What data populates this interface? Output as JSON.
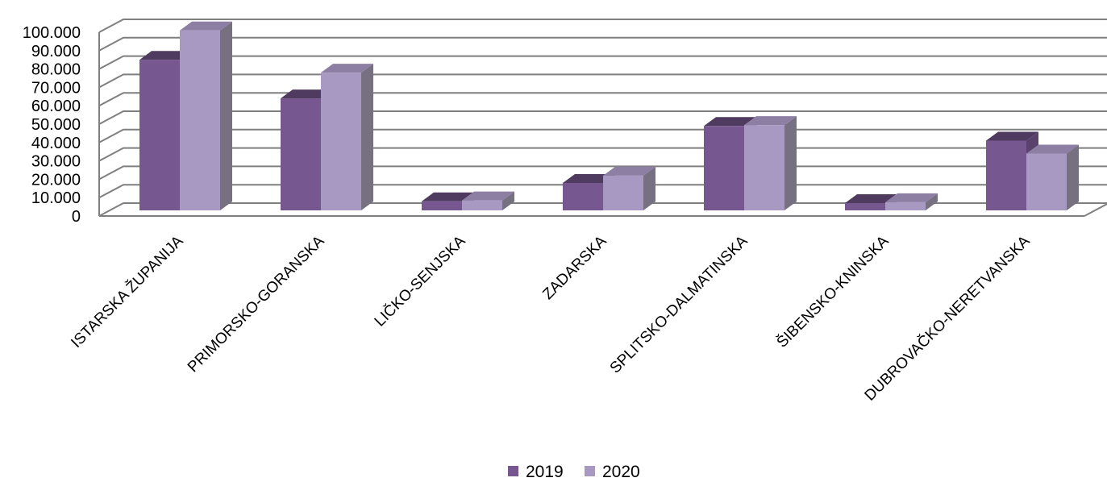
{
  "chart_data": {
    "type": "bar",
    "title": "",
    "xlabel": "",
    "ylabel": "",
    "categories": [
      "ISTARSKA ŽUPANIJA",
      "PRIMORSKO-GORANSKA",
      "LIČKO-SENJSKA",
      "ZADARSKA",
      "SPLITSKO-DALMATINSKA",
      "ŠIBENSKO-KNINSKA",
      "DUBROVAČKO-NERETVANSKA"
    ],
    "series": [
      {
        "name": "2019",
        "values": [
          85000,
          64000,
          8000,
          18000,
          49000,
          7000,
          41000
        ]
      },
      {
        "name": "2020",
        "values": [
          101000,
          78000,
          8500,
          22000,
          49500,
          7500,
          34000
        ]
      }
    ],
    "ylim": [
      0,
      100000
    ],
    "yticks": [
      "0",
      "10.000",
      "20.000",
      "30.000",
      "40.000",
      "50.000",
      "60.000",
      "70.000",
      "80.000",
      "90.000",
      "100.000"
    ],
    "grid": true,
    "legend_position": "bottom",
    "colors": {
      "s0_front": "#77578f",
      "s0_side": "#5a426d",
      "s0_top": "#4f3a60",
      "s1_front": "#a899c2",
      "s1_side": "#767080",
      "s1_top": "#8d7fa4",
      "grid": "#7f7f7f"
    }
  }
}
